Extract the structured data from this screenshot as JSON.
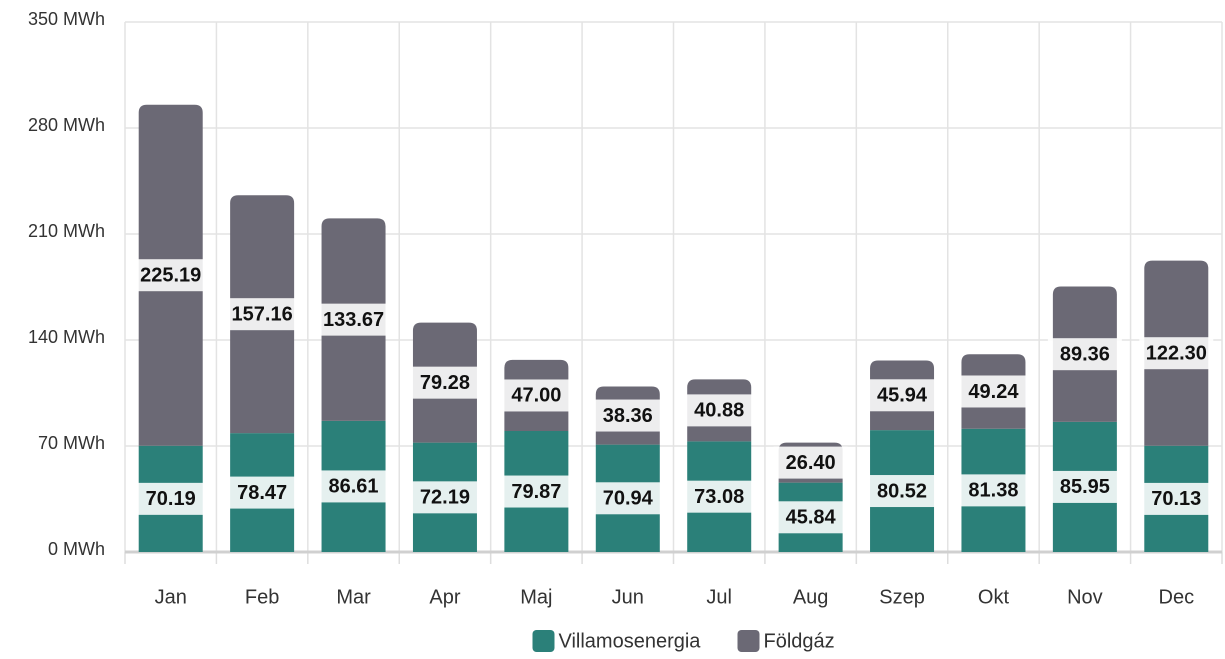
{
  "chart_data": {
    "type": "bar",
    "stacked": true,
    "categories": [
      "Jan",
      "Feb",
      "Mar",
      "Apr",
      "Maj",
      "Jun",
      "Jul",
      "Aug",
      "Szep",
      "Okt",
      "Nov",
      "Dec"
    ],
    "series": [
      {
        "name": "Villamosenergia",
        "color": "#2b8079",
        "values": [
          70.19,
          78.47,
          86.61,
          72.19,
          79.87,
          70.94,
          73.08,
          45.84,
          80.52,
          81.38,
          85.95,
          70.13
        ],
        "value_labels": [
          "70.19",
          "78.47",
          "86.61",
          "72.19",
          "79.87",
          "70.94",
          "73.08",
          "45.84",
          "80.52",
          "81.38",
          "85.95",
          "70.13"
        ]
      },
      {
        "name": "Földgáz",
        "color": "#6b6975",
        "values": [
          225.19,
          157.16,
          133.67,
          79.28,
          47.0,
          38.36,
          40.88,
          26.4,
          45.94,
          49.24,
          89.36,
          122.3
        ],
        "value_labels": [
          "225.19",
          "157.16",
          "133.67",
          "79.28",
          "47.00",
          "38.36",
          "40.88",
          "26.40",
          "45.94",
          "49.24",
          "89.36",
          "122.30"
        ]
      }
    ],
    "ylim": [
      0,
      350
    ],
    "yticks": [
      {
        "value": 0,
        "label": "0 MWh"
      },
      {
        "value": 70,
        "label": "70 MWh"
      },
      {
        "value": 140,
        "label": "140 MWh"
      },
      {
        "value": 210,
        "label": "210 MWh"
      },
      {
        "value": 280,
        "label": "280 MWh"
      },
      {
        "value": 350,
        "label": "350 MWh"
      }
    ],
    "grid": true,
    "legend": "bottom"
  }
}
